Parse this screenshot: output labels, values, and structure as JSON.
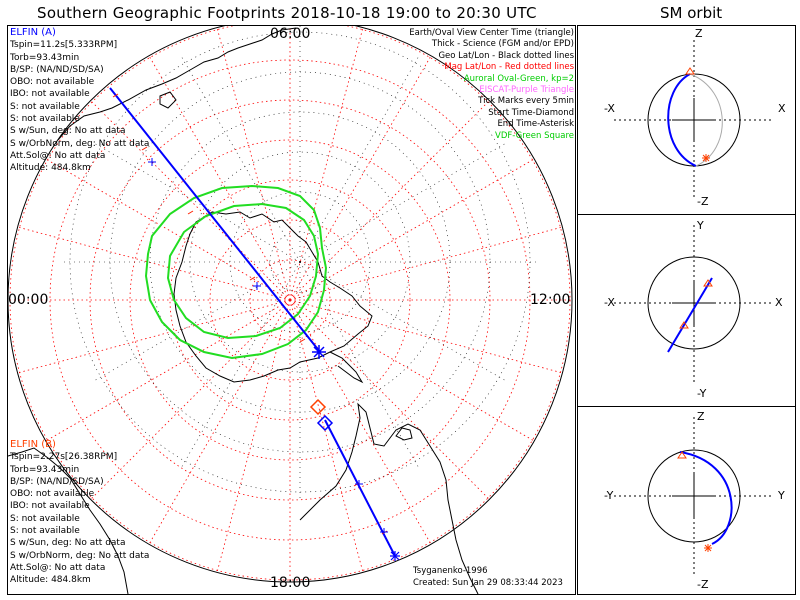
{
  "title": "Southern Geographic Footprints 2018-10-18 19:00 to 20:30 UTC",
  "sm_title": "SM orbit",
  "clock_labels": {
    "top": "06:00",
    "left": "00:00",
    "right": "12:00",
    "bottom": "18:00"
  },
  "elfin_a": {
    "name": "ELFIN (A)",
    "color": "#0000ff",
    "lines": [
      "Tspin=11.2s[5.333RPM]",
      "Torb=93.43min",
      "B/SP: (NA/ND/SD/SA)",
      "OBO: not available",
      "IBO: not available",
      "S: not available",
      "S: not available",
      "S w/Sun, deg: No att data",
      "S w/OrbNorm, deg: No att data",
      "Att.Sol@: No att data",
      "Altitude: 484.8km"
    ]
  },
  "elfin_b": {
    "name": "ELFIN (B)",
    "color": "#ff4000",
    "lines": [
      "Tspin=2.27s[26.38RPM]",
      "Torb=93.43min",
      "B/SP: (NA/ND/SD/SA)",
      "OBO: not available",
      "IBO: not available",
      "S: not available",
      "S: not available",
      "S w/Sun, deg: No att data",
      "S w/OrbNorm, deg: No att data",
      "Att.Sol@: No att data",
      "Altitude: 484.8km"
    ]
  },
  "legend": [
    {
      "text": "Earth/Oval View Center Time (triangle)",
      "color": "#000000"
    },
    {
      "text": "Thick - Science (FGM and/or EPD)",
      "color": "#000000"
    },
    {
      "text": "Geo Lat/Lon - Black dotted lines",
      "color": "#000000"
    },
    {
      "text": "Mag Lat/Lon - Red dotted lines",
      "color": "#ff0000"
    },
    {
      "text": "Auroral Oval-Green, kp=2",
      "color": "#00cc00"
    },
    {
      "text": "EISCAT-Purple Triangle",
      "color": "#ff66ff"
    },
    {
      "text": "Tick Marks every 5min",
      "color": "#000000"
    },
    {
      "text": "Start Time-Diamond",
      "color": "#000000"
    },
    {
      "text": "End Time-Asterisk",
      "color": "#000000"
    },
    {
      "text": "VDF-Green Square",
      "color": "#00cc00"
    }
  ],
  "credit": {
    "model": "Tsyganenko-1996",
    "created": "Created: Sun Jan 29 08:33:44 2023"
  },
  "sm_panels": [
    {
      "top": "Z",
      "bottom": "-Z",
      "left": "-X",
      "right": "X"
    },
    {
      "top": "Y",
      "bottom": "-Y",
      "left": "-X",
      "right": "X"
    },
    {
      "top": "Z",
      "bottom": "-Z",
      "left": "-Y",
      "right": "Y"
    }
  ],
  "colors": {
    "mag_grid": "#ff0000",
    "geo_grid": "#000000",
    "oval": "#22dd22",
    "track_a": "#0000ff",
    "track_b": "#ff4000",
    "eiscat": "#ff66ff"
  }
}
